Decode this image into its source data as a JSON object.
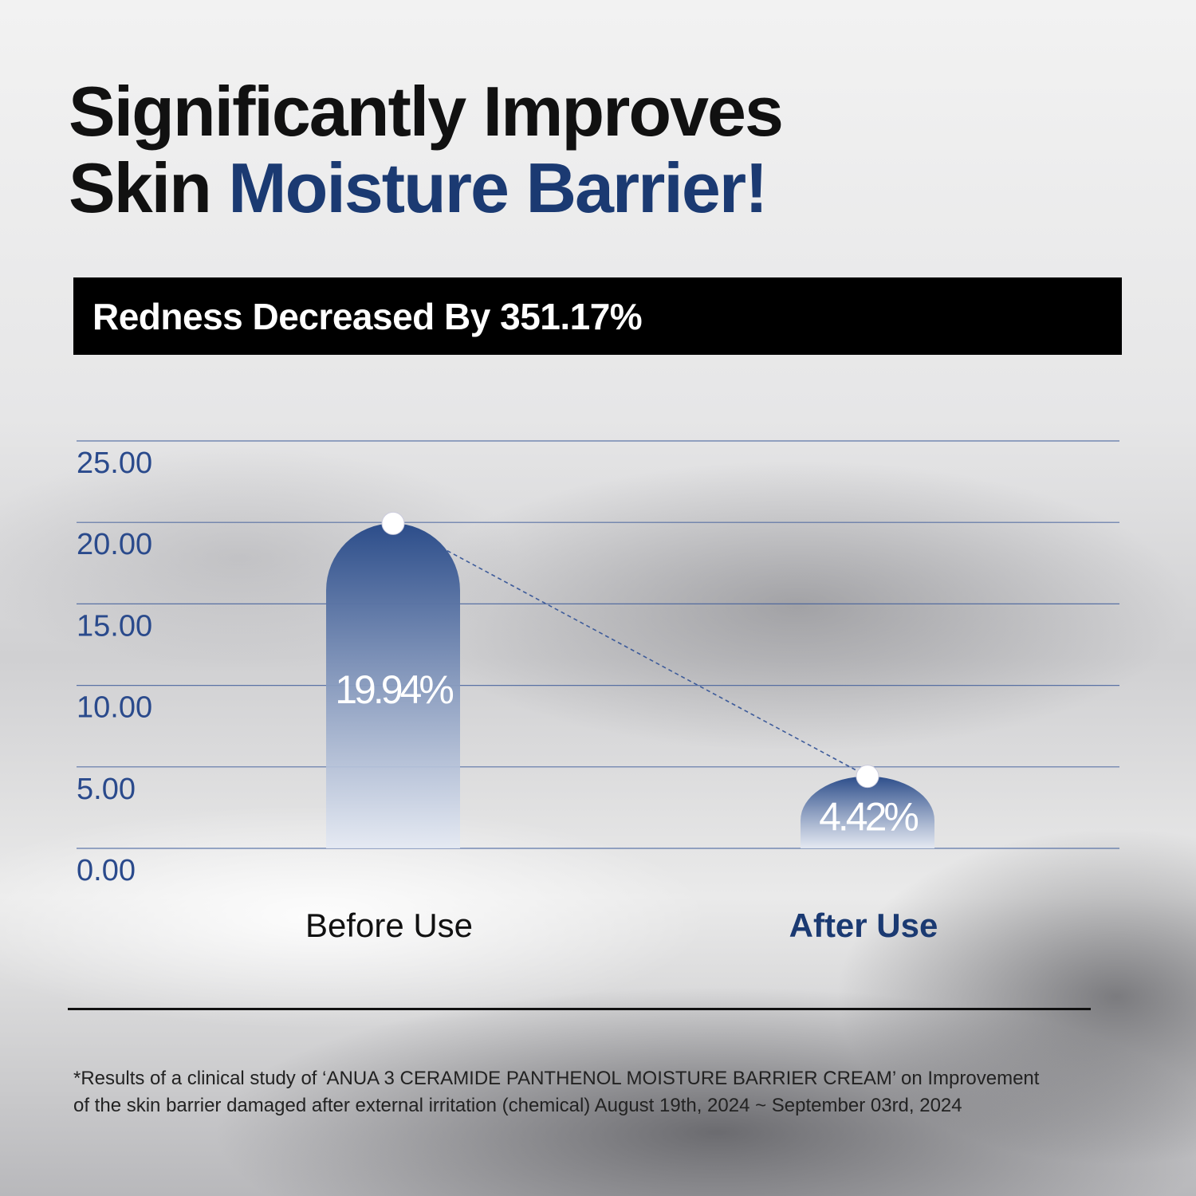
{
  "headline": {
    "line1": "Significantly Improves",
    "line2_plain": "Skin ",
    "line2_accent": "Moisture Barrier!"
  },
  "banner": "Redness Decreased By 351.17%",
  "colors": {
    "accent": "#1b3a72",
    "bar_top": "#2c4d8a",
    "bar_bottom": "#e4e9f3",
    "gridline": "#3d5b9a",
    "tick": "#2a4a8c"
  },
  "chart_data": {
    "type": "bar",
    "categories": [
      "Before Use",
      "After Use"
    ],
    "values": [
      19.94,
      4.42
    ],
    "data_labels": [
      "19.94%",
      "4.42%"
    ],
    "yticks": [
      "0.00",
      "5.00",
      "10.00",
      "15.00",
      "20.00",
      "25.00"
    ],
    "ylim": [
      0,
      25
    ],
    "grid": true,
    "connector": "dashed line between bar tops"
  },
  "footnote": {
    "line1": "*Results of a clinical study of ‘ANUA 3 CERAMIDE PANTHENOL MOISTURE BARRIER CREAM’ on Improvement",
    "line2": "of the skin barrier damaged after external irritation (chemical) August 19th, 2024 ~ September 03rd, 2024"
  }
}
